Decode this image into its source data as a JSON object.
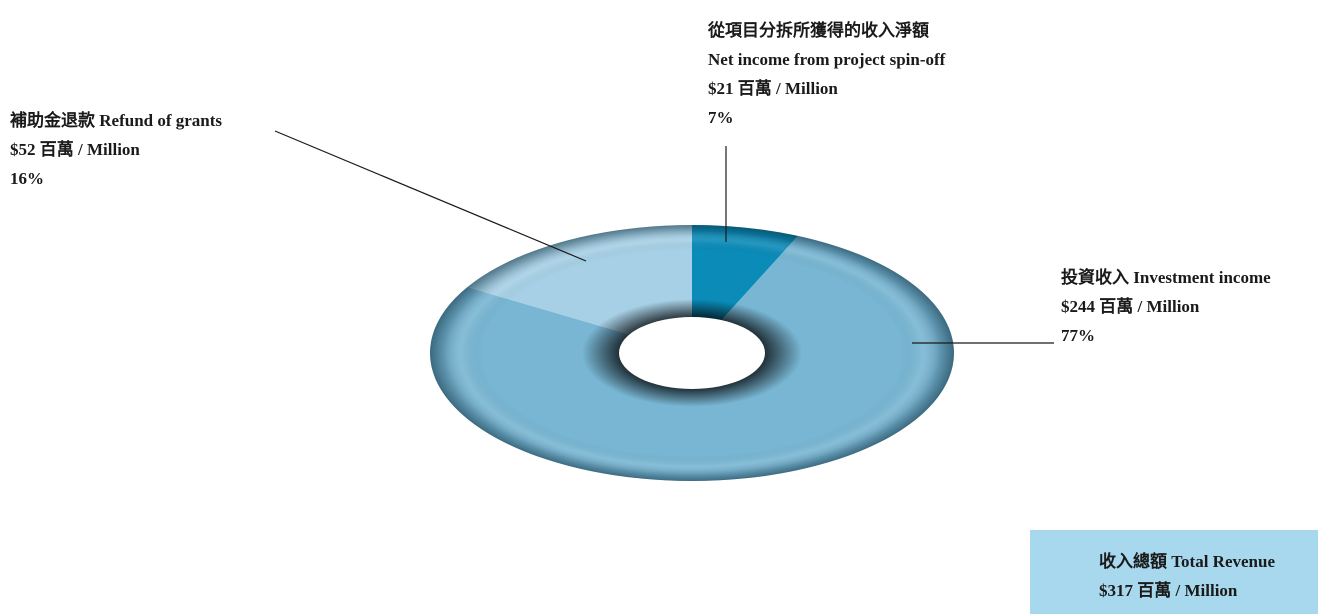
{
  "chart_data": {
    "type": "pie",
    "style": "3d-donut",
    "categories": [
      "從項目分拆所獲得的收入淨額 Net income from project spin-off",
      "投資收入 Investment income",
      "補助金退款 Refund of grants"
    ],
    "values": [
      21,
      244,
      52
    ],
    "percentages": [
      7,
      77,
      16
    ],
    "colors": [
      "#0a8bb8",
      "#78b6d3",
      "#a7d0e6"
    ],
    "legend": "none (leader-line callouts)",
    "labels": [
      {
        "key": "spinoff",
        "lines": [
          "從項目分拆所獲得的收入淨額",
          "Net income from project spin-off",
          "$21 百萬 / Million",
          "7%"
        ]
      },
      {
        "key": "invest",
        "lines": [
          "投資收入 Investment income",
          "$244 百萬 / Million",
          "77%"
        ]
      },
      {
        "key": "grants",
        "lines": [
          "補助金退款 Refund of grants",
          "$52 百萬 / Million",
          "16%"
        ]
      }
    ],
    "total": {
      "label": "收入總額 Total Revenue",
      "value_text": "$317 百萬 / Million"
    }
  }
}
